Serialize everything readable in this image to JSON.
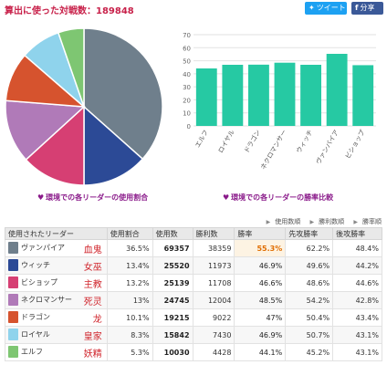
{
  "header": {
    "title": "算出に使った対戦数：189848",
    "tweet_label": "ツイート",
    "share_label": "分享"
  },
  "captions": {
    "pie": "環境での各リーダーの使用割合",
    "bar": "環境での各リーダーの勝率比較"
  },
  "sort_links": [
    "使用数順",
    "勝利数順",
    "勝率順"
  ],
  "table": {
    "headers": [
      "使用されたリーダー",
      "使用割合",
      "使用数",
      "勝利数",
      "勝率",
      "先攻勝率",
      "後攻勝率"
    ],
    "rows": [
      {
        "leader": "ヴァンパイア",
        "cn": "血鬼",
        "share": "36.5%",
        "uses": "69357",
        "wins": "38359",
        "winrate": "55.3%",
        "first": "62.2%",
        "second": "48.4%",
        "highlight": true
      },
      {
        "leader": "ウィッチ",
        "cn": "女巫",
        "share": "13.4%",
        "uses": "25520",
        "wins": "11973",
        "winrate": "46.9%",
        "first": "49.6%",
        "second": "44.2%"
      },
      {
        "leader": "ビショップ",
        "cn": "主教",
        "share": "13.2%",
        "uses": "25139",
        "wins": "11708",
        "winrate": "46.6%",
        "first": "48.6%",
        "second": "44.6%"
      },
      {
        "leader": "ネクロマンサー",
        "cn": "死灵",
        "share": "13%",
        "uses": "24745",
        "wins": "12004",
        "winrate": "48.5%",
        "first": "54.2%",
        "second": "42.8%"
      },
      {
        "leader": "ドラゴン",
        "cn": "龙",
        "share": "10.1%",
        "uses": "19215",
        "wins": "9022",
        "winrate": "47%",
        "first": "50.4%",
        "second": "43.4%"
      },
      {
        "leader": "ロイヤル",
        "cn": "皇家",
        "share": "8.3%",
        "uses": "15842",
        "wins": "7430",
        "winrate": "46.9%",
        "first": "50.7%",
        "second": "43.1%"
      },
      {
        "leader": "エルフ",
        "cn": "妖精",
        "share": "5.3%",
        "uses": "10030",
        "wins": "4428",
        "winrate": "44.1%",
        "first": "45.2%",
        "second": "43.1%"
      }
    ]
  },
  "leader_colors": {
    "ヴァンパイア": "#6f7f8c",
    "ウィッチ": "#2c4a96",
    "ビショップ": "#d63f73",
    "ネクロマンサー": "#b07ab8",
    "ドラゴン": "#d6532e",
    "ロイヤル": "#8fd3ec",
    "エルフ": "#7ec672"
  },
  "accent": {
    "title": "#c8214a",
    "caption": "#8a1a8a",
    "bar": "#26c9a3",
    "highlight": "#e06d00"
  },
  "chart_data": [
    {
      "type": "pie",
      "categories": [
        "ヴァンパイア",
        "ウィッチ",
        "ビショップ",
        "ネクロマンサー",
        "ドラゴン",
        "ロイヤル",
        "エルフ"
      ],
      "values": [
        36.5,
        13.4,
        13.2,
        13.0,
        10.1,
        8.3,
        5.3
      ],
      "title": "環境での各リーダーの使用割合",
      "colors": [
        "#6f7f8c",
        "#2c4a96",
        "#d63f73",
        "#b07ab8",
        "#d6532e",
        "#8fd3ec",
        "#7ec672"
      ]
    },
    {
      "type": "bar",
      "categories": [
        "エルフ",
        "ロイヤル",
        "ドラゴン",
        "ネクロマンサー",
        "ウィッチ",
        "ヴァンパイア",
        "ビショップ"
      ],
      "values": [
        44.1,
        46.9,
        47.0,
        48.5,
        46.9,
        55.3,
        46.6
      ],
      "title": "環境での各リーダーの勝率比較",
      "ylim": [
        0,
        70
      ],
      "yticks": [
        0,
        10,
        20,
        30,
        40,
        50,
        60,
        70
      ],
      "grid": true,
      "color": "#26c9a3"
    }
  ]
}
